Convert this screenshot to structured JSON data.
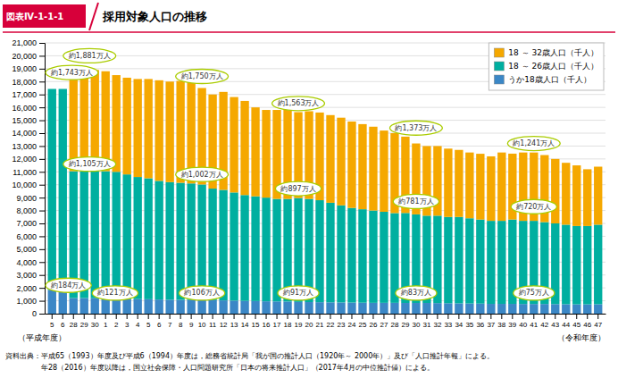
{
  "chart_data": {
    "type": "bar",
    "stacked": true,
    "title": "採用対象人口の推移",
    "subtitle": "図表Ⅳ-1-1-1",
    "xlabel": [
      "（平成年度）",
      "（令和年度）"
    ],
    "categories": [
      "5",
      "6",
      "28",
      "29",
      "30",
      "1",
      "2",
      "3",
      "4",
      "5",
      "6",
      "7",
      "8",
      "9",
      "10",
      "11",
      "12",
      "13",
      "14",
      "15",
      "16",
      "17",
      "18",
      "19",
      "20",
      "21",
      "22",
      "23",
      "24",
      "25",
      "26",
      "27",
      "28",
      "29",
      "30",
      "31",
      "32",
      "33",
      "34",
      "35",
      "36",
      "37",
      "38",
      "39",
      "40",
      "41",
      "42",
      "43",
      "44",
      "45",
      "46",
      "47"
    ],
    "series": [
      {
        "name": "うか18歳人口（千人）",
        "color": "#3B87C6",
        "values": [
          1840,
          1840,
          1210,
          1210,
          1200,
          1180,
          1200,
          1150,
          1130,
          1120,
          1100,
          1080,
          1070,
          1060,
          1060,
          1050,
          1030,
          1010,
          990,
          980,
          960,
          950,
          940,
          910,
          900,
          890,
          880,
          870,
          860,
          850,
          840,
          840,
          840,
          830,
          830,
          830,
          820,
          810,
          800,
          790,
          780,
          760,
          760,
          760,
          750,
          750,
          750,
          740,
          730,
          720,
          720,
          730
        ]
      },
      {
        "name": "18 ～ 26歳人口（千人）",
        "color": "#00AFA0",
        "values": [
          15590,
          15590,
          9840,
          9840,
          9900,
          9870,
          9800,
          9650,
          9470,
          9380,
          9200,
          9120,
          9080,
          9040,
          8960,
          8650,
          8570,
          8390,
          8210,
          8120,
          8040,
          7950,
          7960,
          8060,
          8000,
          7910,
          7720,
          7530,
          7340,
          7250,
          7160,
          7060,
          6960,
          6980,
          6870,
          6770,
          6780,
          6690,
          6700,
          6610,
          6520,
          6440,
          6440,
          6540,
          6450,
          6450,
          6350,
          6260,
          6170,
          6080,
          6080,
          6170
        ]
      },
      {
        "name": "18 ～ 32歳人口（千人）",
        "color": "#F5A800",
        "values": [
          0,
          0,
          7950,
          7760,
          7800,
          7750,
          7500,
          7500,
          7600,
          7700,
          7800,
          7800,
          7900,
          7900,
          7480,
          7300,
          7600,
          7400,
          7300,
          6900,
          6800,
          6900,
          7100,
          6660,
          6800,
          6800,
          6800,
          6800,
          6700,
          6600,
          6500,
          6300,
          6200,
          5920,
          5500,
          5400,
          5400,
          5300,
          5200,
          5100,
          5100,
          5000,
          5300,
          5110,
          5300,
          5300,
          5200,
          5000,
          4800,
          4700,
          4400,
          4500
        ]
      }
    ],
    "ylim": [
      0,
      21000
    ],
    "yticks": [
      0,
      {
        "value": 1000,
        "label": "1,000"
      },
      {
        "value": 2000,
        "label": "2,000"
      },
      {
        "value": 3000,
        "label": "3,000"
      },
      {
        "value": 4000,
        "label": "4,000"
      },
      {
        "value": 5000,
        "label": "5,000"
      },
      {
        "value": 6000,
        "label": "6,000"
      },
      {
        "value": 7000,
        "label": "7,000"
      },
      {
        "value": 8000,
        "label": "8,000"
      },
      {
        "value": 9000,
        "label": "9,000"
      },
      {
        "value": 10000,
        "label": "10,000"
      },
      {
        "value": 11000,
        "label": "11,000"
      },
      {
        "value": 12000,
        "label": "12,000"
      },
      {
        "value": 13000,
        "label": "13,000"
      },
      {
        "value": 14000,
        "label": "14,000"
      },
      {
        "value": 15000,
        "label": "15,000"
      },
      {
        "value": 16000,
        "label": "16,000"
      },
      {
        "value": 17000,
        "label": "17,000"
      },
      {
        "value": 18000,
        "label": "18,000"
      },
      {
        "value": 19000,
        "label": "19,000"
      },
      {
        "value": 20000,
        "label": "20,000"
      },
      {
        "value": 21000,
        "label": "21,000"
      }
    ],
    "grid": true,
    "legend": "upper right",
    "annotations": [
      {
        "text": "約1,743万人",
        "x": -0.6,
        "y": 18700
      },
      {
        "text": "約1,881万人",
        "x": 3.5,
        "y": 20000
      },
      {
        "text": "約1,105万人",
        "x": 3.5,
        "y": 11600
      },
      {
        "text": "約184万人",
        "x": -0.6,
        "y": 2200
      },
      {
        "text": "約121万人",
        "x": 3.5,
        "y": 1600
      },
      {
        "text": "約1,750万人",
        "x": 14,
        "y": 18400
      },
      {
        "text": "約1,002万人",
        "x": 14,
        "y": 10800
      },
      {
        "text": "約106万人",
        "x": 14,
        "y": 1600
      },
      {
        "text": "約1,563万人",
        "x": 23,
        "y": 16300
      },
      {
        "text": "約897万人",
        "x": 23,
        "y": 9700
      },
      {
        "text": "約91万人",
        "x": 23,
        "y": 1600
      },
      {
        "text": "約1,373万人",
        "x": 34,
        "y": 14400
      },
      {
        "text": "約781万人",
        "x": 34,
        "y": 8700
      },
      {
        "text": "約83万人",
        "x": 34,
        "y": 1600
      },
      {
        "text": "約1,241万人",
        "x": 45,
        "y": 13200
      },
      {
        "text": "約720万人",
        "x": 45,
        "y": 8300
      },
      {
        "text": "約75万人",
        "x": 45,
        "y": 1600
      }
    ],
    "footnotes": [
      "資料出典：平成65（1993）年度及び平成6（1994）年度は，総務省統計局「我が国の推計人口（1920年～ 2000年）」及び「人口推計年報」による。",
      "　　　　　年28（2016）年度以降は，国立社会保障・人口問題研究所「日本の将来推計人口」（2017年4月の中位推計値）による。"
    ]
  }
}
